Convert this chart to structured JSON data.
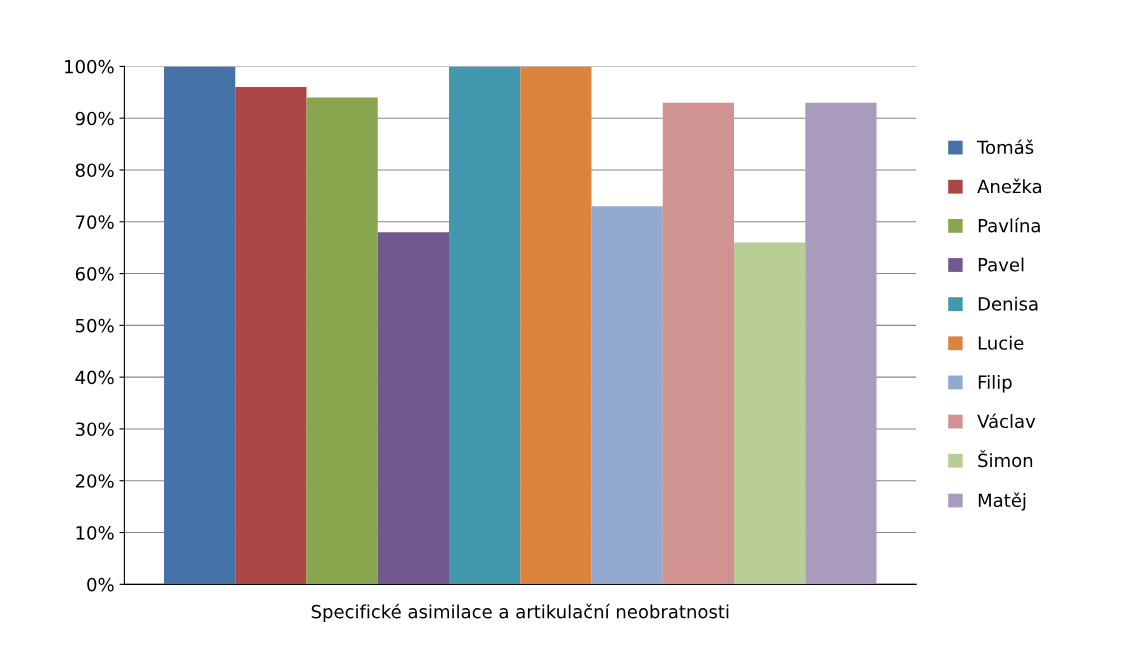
{
  "chart_data": {
    "type": "bar",
    "categories": [
      "Specifické asimilace a artikulační neobratnosti"
    ],
    "series": [
      {
        "name": "Tomáš",
        "color": "#4572a7",
        "values": [
          100
        ]
      },
      {
        "name": "Anežka",
        "color": "#aa4643",
        "values": [
          96
        ]
      },
      {
        "name": "Pavlína",
        "color": "#89a54e",
        "values": [
          94
        ]
      },
      {
        "name": "Pavel",
        "color": "#71588f",
        "values": [
          68
        ]
      },
      {
        "name": "Denisa",
        "color": "#4198af",
        "values": [
          100
        ]
      },
      {
        "name": "Lucie",
        "color": "#db843d",
        "values": [
          100
        ]
      },
      {
        "name": "Filip",
        "color": "#93a9cf",
        "values": [
          73
        ]
      },
      {
        "name": "Václav",
        "color": "#d19392",
        "values": [
          93
        ]
      },
      {
        "name": "Šimon",
        "color": "#b9cd96",
        "values": [
          66
        ]
      },
      {
        "name": "Matěj",
        "color": "#a99bbd",
        "values": [
          93
        ]
      }
    ],
    "ylim": [
      0,
      100
    ],
    "yticks": [
      {
        "value": 0,
        "label": "0%"
      },
      {
        "value": 10,
        "label": "10%"
      },
      {
        "value": 20,
        "label": "20%"
      },
      {
        "value": 30,
        "label": "30%"
      },
      {
        "value": 40,
        "label": "40%"
      },
      {
        "value": 50,
        "label": "50%"
      },
      {
        "value": 60,
        "label": "60%"
      },
      {
        "value": 70,
        "label": "70%"
      },
      {
        "value": 80,
        "label": "80%"
      },
      {
        "value": 90,
        "label": "90%"
      },
      {
        "value": 100,
        "label": "100%"
      }
    ],
    "grid": "y",
    "legend": "right"
  }
}
